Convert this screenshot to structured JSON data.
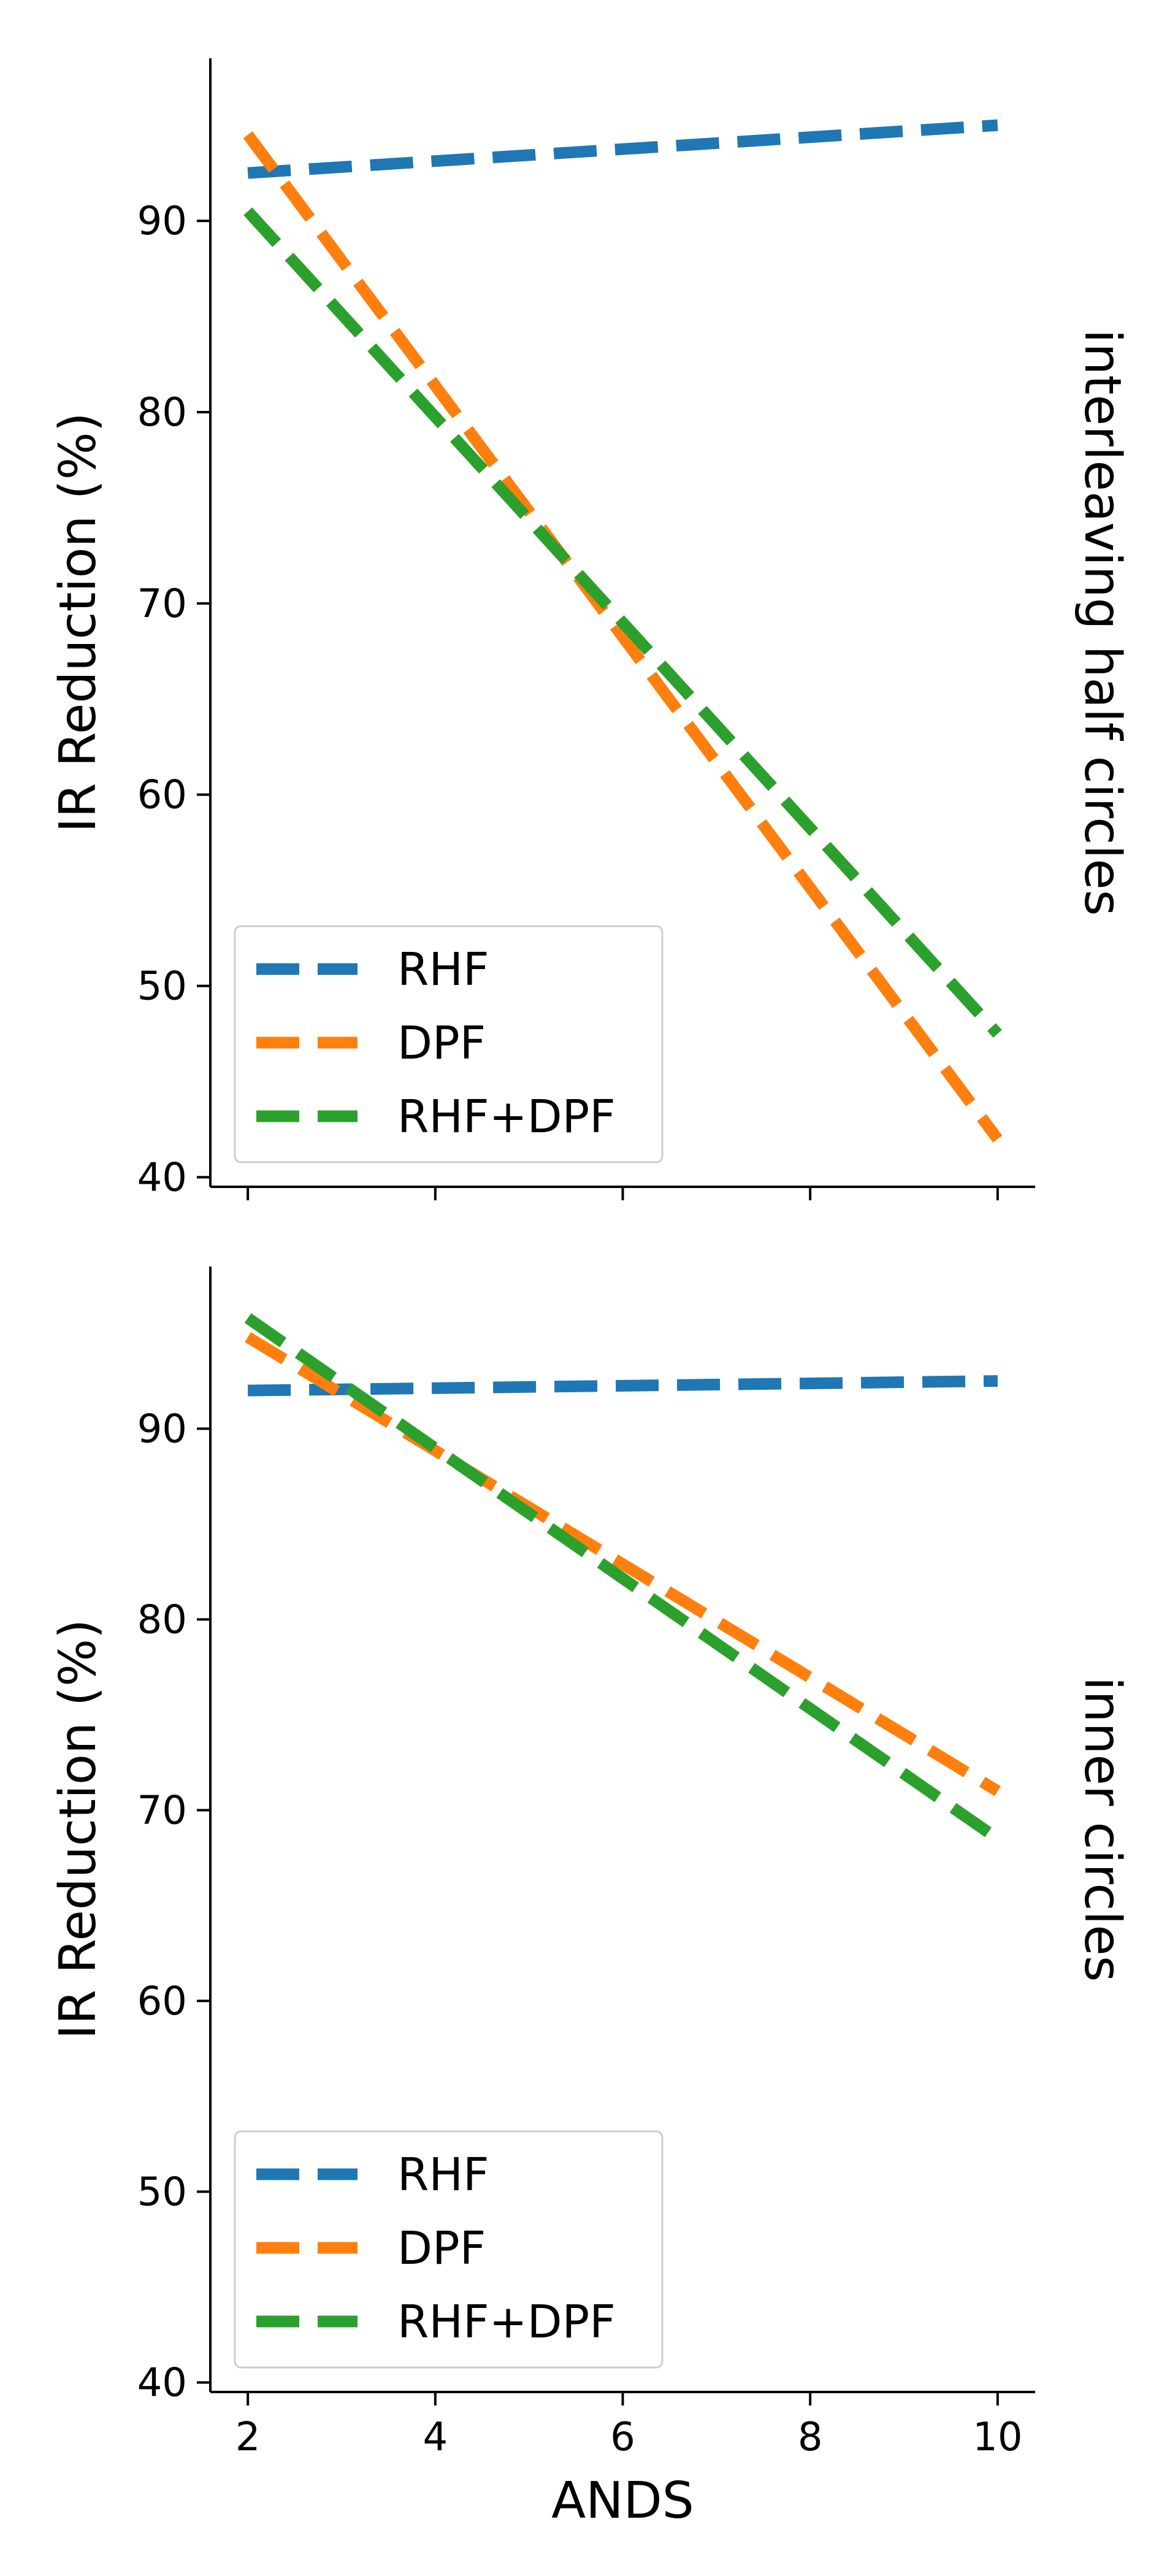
{
  "chart_data": [
    {
      "type": "line",
      "facet_label": "interleaving half circles",
      "xlabel": "",
      "ylabel": "IR Reduction (%)",
      "x": [
        2,
        10
      ],
      "xlim": [
        1.6,
        10.4
      ],
      "ylim": [
        39.5,
        98.5
      ],
      "xticks": [
        2,
        4,
        6,
        8,
        10
      ],
      "xtick_labels_visible": false,
      "yticks": [
        40,
        50,
        60,
        70,
        80,
        90
      ],
      "grid": false,
      "legend_position": "lower-left",
      "series": [
        {
          "name": "RHF",
          "color": "#1f77b4",
          "values": [
            92.5,
            95.0
          ]
        },
        {
          "name": "DPF",
          "color": "#ff7f0e",
          "values": [
            94.5,
            42.0
          ]
        },
        {
          "name": "RHF+DPF",
          "color": "#2ca02c",
          "values": [
            90.5,
            47.5
          ]
        }
      ]
    },
    {
      "type": "line",
      "facet_label": "inner circles",
      "xlabel": "ANDS",
      "ylabel": "IR Reduction (%)",
      "x": [
        2,
        10
      ],
      "xlim": [
        1.6,
        10.4
      ],
      "ylim": [
        39.5,
        98.5
      ],
      "xticks": [
        2,
        4,
        6,
        8,
        10
      ],
      "xtick_labels_visible": true,
      "yticks": [
        40,
        50,
        60,
        70,
        80,
        90
      ],
      "grid": false,
      "legend_position": "lower-left",
      "series": [
        {
          "name": "RHF",
          "color": "#1f77b4",
          "values": [
            92.0,
            92.5
          ]
        },
        {
          "name": "DPF",
          "color": "#ff7f0e",
          "values": [
            94.8,
            71.0
          ]
        },
        {
          "name": "RHF+DPF",
          "color": "#2ca02c",
          "values": [
            95.8,
            68.5
          ]
        }
      ]
    }
  ]
}
